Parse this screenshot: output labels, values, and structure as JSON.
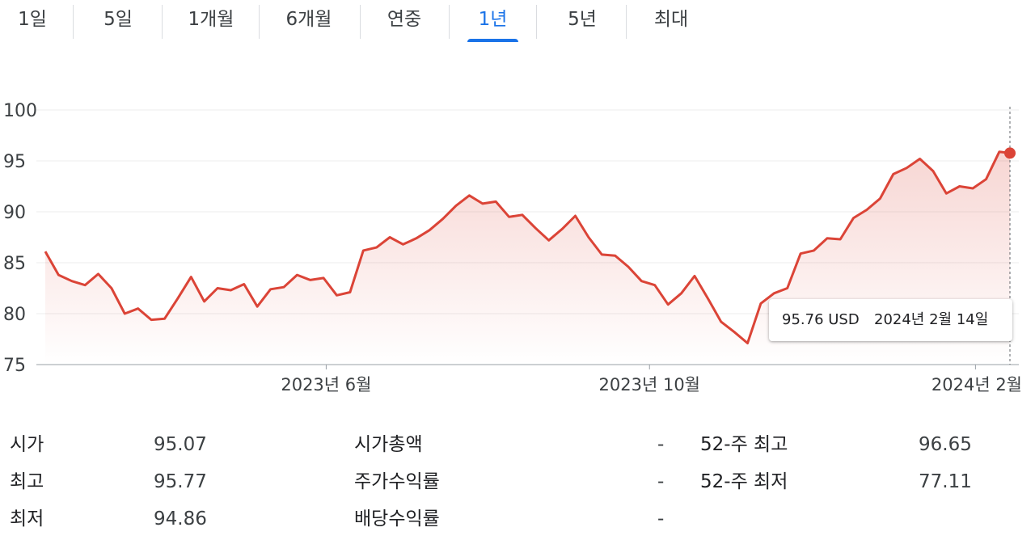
{
  "tabs": [
    {
      "label": "1일",
      "active": false
    },
    {
      "label": "5일",
      "active": false
    },
    {
      "label": "1개월",
      "active": false
    },
    {
      "label": "6개월",
      "active": false
    },
    {
      "label": "연중",
      "active": false
    },
    {
      "label": "1년",
      "active": true
    },
    {
      "label": "5년",
      "active": false
    },
    {
      "label": "최대",
      "active": false
    }
  ],
  "tooltip": {
    "price": "95.76 USD",
    "date": "2024년 2월 14일"
  },
  "stats": {
    "open_label": "시가",
    "open_value": "95.07",
    "high_label": "최고",
    "high_value": "95.77",
    "low_label": "최저",
    "low_value": "94.86",
    "mktcap_label": "시가총액",
    "mktcap_value": "-",
    "pe_label": "주가수익률",
    "pe_value": "-",
    "div_label": "배당수익률",
    "div_value": "-",
    "w52_high_label": "52-주 최고",
    "w52_high_value": "96.65",
    "w52_low_label": "52-주 최저",
    "w52_low_value": "77.11"
  },
  "colors": {
    "line": "#db4437",
    "accent": "#1a73e8",
    "grid": "#ececec",
    "text": "#202124"
  },
  "chart_data": {
    "type": "area",
    "title": "",
    "xlabel": "",
    "ylabel": "",
    "ylim": [
      75,
      100
    ],
    "yticks": [
      75,
      80,
      85,
      90,
      95,
      100
    ],
    "grid": true,
    "legend": "none",
    "x_tick_labels": [
      "2023년 6월",
      "2023년 10월",
      "2024년 2월"
    ],
    "x_tick_dates": [
      "2023-06-01",
      "2023-10-01",
      "2024-02-01"
    ],
    "x": [
      "2023-02-15",
      "2023-02-20",
      "2023-02-25",
      "2023-03-02",
      "2023-03-07",
      "2023-03-12",
      "2023-03-17",
      "2023-03-22",
      "2023-03-27",
      "2023-04-01",
      "2023-04-06",
      "2023-04-11",
      "2023-04-16",
      "2023-04-21",
      "2023-04-26",
      "2023-05-01",
      "2023-05-06",
      "2023-05-11",
      "2023-05-16",
      "2023-05-21",
      "2023-05-26",
      "2023-05-31",
      "2023-06-05",
      "2023-06-10",
      "2023-06-15",
      "2023-06-20",
      "2023-06-25",
      "2023-06-30",
      "2023-07-05",
      "2023-07-10",
      "2023-07-15",
      "2023-07-20",
      "2023-07-25",
      "2023-07-30",
      "2023-08-04",
      "2023-08-09",
      "2023-08-14",
      "2023-08-19",
      "2023-08-24",
      "2023-08-29",
      "2023-09-03",
      "2023-09-08",
      "2023-09-13",
      "2023-09-18",
      "2023-09-23",
      "2023-09-28",
      "2023-10-03",
      "2023-10-08",
      "2023-10-13",
      "2023-10-18",
      "2023-10-23",
      "2023-10-28",
      "2023-11-02",
      "2023-11-07",
      "2023-11-12",
      "2023-11-17",
      "2023-11-22",
      "2023-11-27",
      "2023-12-02",
      "2023-12-07",
      "2023-12-12",
      "2023-12-17",
      "2023-12-22",
      "2023-12-27",
      "2024-01-01",
      "2024-01-06",
      "2024-01-11",
      "2024-01-16",
      "2024-01-21",
      "2024-01-26",
      "2024-01-31",
      "2024-02-05",
      "2024-02-10",
      "2024-02-14"
    ],
    "series": [
      {
        "values": [
          86.1,
          83.8,
          83.2,
          82.8,
          83.9,
          82.5,
          80.0,
          80.5,
          79.4,
          79.5,
          81.5,
          83.6,
          81.2,
          82.5,
          82.3,
          82.9,
          80.7,
          82.4,
          82.6,
          83.8,
          83.3,
          83.5,
          81.8,
          82.1,
          86.2,
          86.5,
          87.5,
          86.8,
          87.4,
          88.2,
          89.3,
          90.6,
          91.6,
          90.8,
          91.0,
          89.5,
          89.7,
          88.4,
          87.2,
          88.3,
          89.6,
          87.5,
          85.8,
          85.7,
          84.6,
          83.2,
          82.8,
          80.9,
          82.0,
          83.7,
          81.5,
          79.2,
          78.2,
          77.1,
          81.0,
          82.0,
          82.5,
          85.9,
          86.2,
          87.4,
          87.3,
          89.4,
          90.2,
          91.3,
          93.7,
          94.3,
          95.2,
          94.0,
          91.8,
          92.5,
          92.3,
          93.2,
          95.9,
          95.76
        ]
      }
    ]
  }
}
